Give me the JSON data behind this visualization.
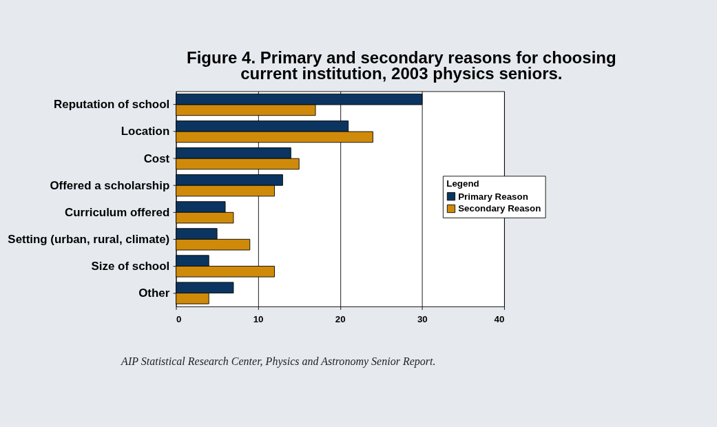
{
  "chart_data": {
    "type": "bar",
    "orientation": "horizontal",
    "title": "Figure 4.  Primary and secondary reasons for choosing\ncurrent institution, 2003 physics seniors.",
    "categories": [
      "Reputation of school",
      "Location",
      "Cost",
      "Offered a scholarship",
      "Curriculum offered",
      "Setting (urban, rural, climate)",
      "Size of school",
      "Other"
    ],
    "series": [
      {
        "name": "Primary Reason",
        "color": "#0b3560",
        "values": [
          30,
          21,
          14,
          13,
          6,
          5,
          4,
          7
        ]
      },
      {
        "name": "Secondary Reason",
        "color": "#d08a0a",
        "values": [
          17,
          24,
          15,
          12,
          7,
          9,
          12,
          4
        ]
      }
    ],
    "xlim": [
      0,
      40
    ],
    "xticks": [
      0,
      10,
      20,
      30,
      40
    ],
    "grid": "x",
    "legend": "right",
    "legend_title": "Legend",
    "annotations": [
      "AIP Statistical Research Center, Physics and Astronomy Senior Report."
    ]
  }
}
